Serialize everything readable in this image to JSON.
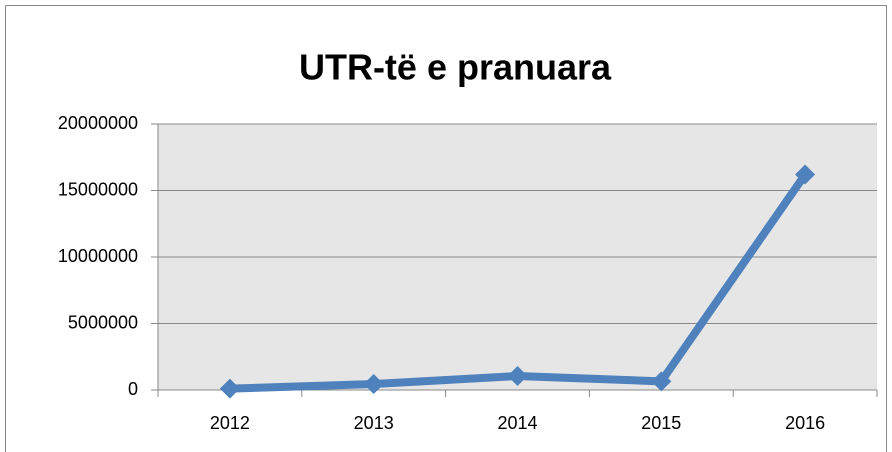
{
  "chart_data": {
    "type": "line",
    "title": "UTR-të e pranuara",
    "categories": [
      "2012",
      "2013",
      "2014",
      "2015",
      "2016"
    ],
    "values": [
      100000,
      450000,
      1050000,
      650000,
      16200000
    ],
    "color": "#4f81bd",
    "ylim": [
      0,
      20000000
    ],
    "yticks": [
      0,
      5000000,
      10000000,
      15000000,
      20000000
    ],
    "grid": true
  }
}
